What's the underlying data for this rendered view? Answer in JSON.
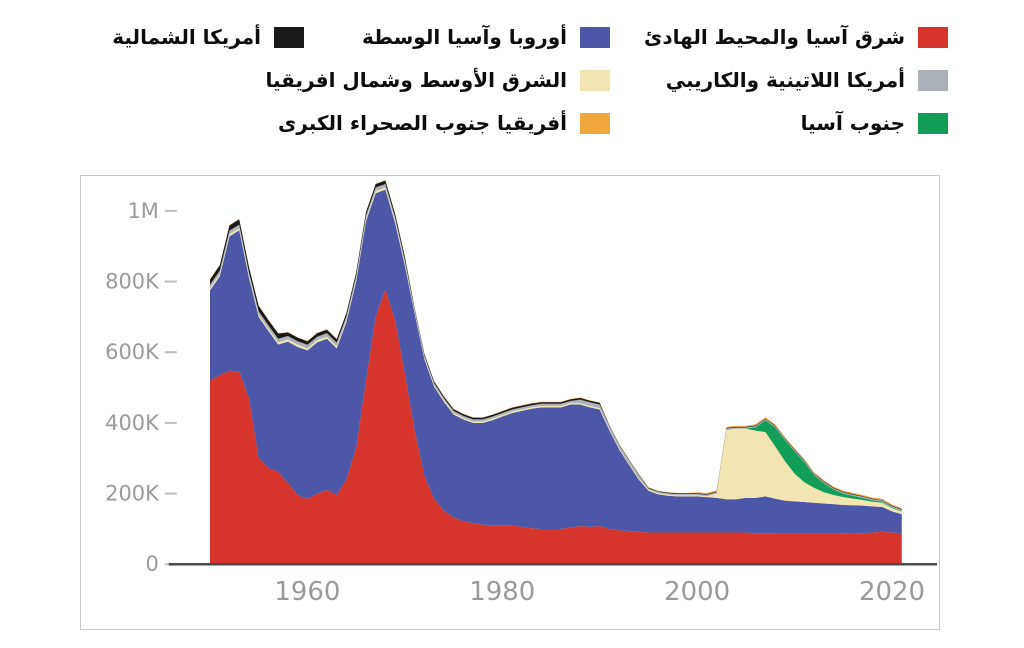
{
  "legend": {
    "items": [
      {
        "label": "شرق آسيا والمحيط الهادئ",
        "color": "#d6352b"
      },
      {
        "label": "أوروبا وآسيا الوسطة",
        "color": "#4c57a7"
      },
      {
        "label": "أمريكا الشمالية",
        "color": "#1a1a1a"
      },
      {
        "label": "أمريكا اللاتينية والكاريبي",
        "color": "#adb2b8"
      },
      {
        "label": "الشرق الأوسط وشمال افريقيا",
        "color": "#f3e5b1"
      },
      {
        "label": "جنوب آسيا",
        "color": "#129e57"
      },
      {
        "label": "أفريقيا جنوب الصحراء الكبرى",
        "color": "#f2a73d"
      }
    ]
  },
  "axes": {
    "y_tick_labels": [
      "0",
      "200K",
      "400K",
      "600K",
      "800K",
      "1M"
    ],
    "x_tick_labels": [
      "1960",
      "1980",
      "2000",
      "2020"
    ]
  },
  "chart_data": {
    "type": "area",
    "stacked": true,
    "title": "",
    "xlabel": "",
    "ylabel": "",
    "grid": false,
    "legend_position": "top",
    "value_scale": "thousands",
    "xlim": [
      1947,
      2024
    ],
    "ymax": 1000,
    "x_ticks": [
      1960,
      1980,
      2000,
      2020
    ],
    "y_ticks": [
      {
        "value": 0,
        "label": "0"
      },
      {
        "value": 200,
        "label": "200K"
      },
      {
        "value": 400,
        "label": "400K"
      },
      {
        "value": 600,
        "label": "600K"
      },
      {
        "value": 800,
        "label": "800K"
      },
      {
        "value": 1000,
        "label": "1M"
      }
    ],
    "x": [
      1950,
      1951,
      1952,
      1953,
      1954,
      1955,
      1956,
      1957,
      1958,
      1959,
      1960,
      1961,
      1962,
      1963,
      1964,
      1965,
      1966,
      1967,
      1968,
      1969,
      1970,
      1971,
      1972,
      1973,
      1974,
      1975,
      1976,
      1977,
      1978,
      1979,
      1980,
      1981,
      1982,
      1983,
      1984,
      1985,
      1986,
      1987,
      1988,
      1989,
      1990,
      1991,
      1992,
      1993,
      1994,
      1995,
      1996,
      1997,
      1998,
      1999,
      2000,
      2001,
      2002,
      2003,
      2004,
      2005,
      2006,
      2007,
      2008,
      2009,
      2010,
      2011,
      2012,
      2013,
      2014,
      2015,
      2016,
      2017,
      2018,
      2019,
      2020,
      2021
    ],
    "series": [
      {
        "id": "east-asia-pacific",
        "name": "شرق آسيا والمحيط الهادئ",
        "color": "#d6352b",
        "values": [
          520,
          535,
          548,
          545,
          470,
          300,
          272,
          262,
          230,
          195,
          185,
          200,
          210,
          196,
          240,
          330,
          520,
          700,
          778,
          690,
          540,
          380,
          250,
          185,
          152,
          132,
          122,
          116,
          112,
          110,
          110,
          110,
          106,
          102,
          100,
          100,
          100,
          104,
          108,
          106,
          108,
          100,
          96,
          94,
          92,
          90,
          90,
          90,
          90,
          90,
          90,
          90,
          90,
          90,
          90,
          90,
          88,
          88,
          88,
          86,
          86,
          86,
          86,
          86,
          86,
          86,
          87,
          88,
          90,
          92,
          90,
          88
        ]
      },
      {
        "id": "europe-central-asia",
        "name": "أوروبا وآسيا الوسطة",
        "color": "#4c57a7",
        "values": [
          255,
          280,
          380,
          400,
          340,
          400,
          388,
          360,
          400,
          420,
          420,
          428,
          428,
          415,
          445,
          470,
          450,
          350,
          282,
          275,
          305,
          330,
          330,
          318,
          308,
          292,
          288,
          284,
          288,
          298,
          308,
          318,
          328,
          338,
          344,
          344,
          344,
          348,
          344,
          338,
          330,
          278,
          228,
          188,
          148,
          118,
          108,
          104,
          102,
          102,
          102,
          100,
          98,
          94,
          94,
          98,
          100,
          104,
          98,
          94,
          92,
          90,
          88,
          86,
          84,
          82,
          80,
          78,
          74,
          70,
          60,
          54
        ]
      },
      {
        "id": "middle-east-north-africa",
        "name": "الشرق الأوسط وشمال افريقيا",
        "color": "#f3e5b1",
        "values": [
          6,
          6,
          6,
          6,
          6,
          6,
          6,
          6,
          6,
          6,
          6,
          6,
          6,
          6,
          6,
          6,
          6,
          6,
          6,
          6,
          6,
          4,
          4,
          4,
          4,
          4,
          4,
          4,
          4,
          4,
          4,
          4,
          4,
          4,
          4,
          4,
          4,
          4,
          4,
          4,
          4,
          3,
          3,
          3,
          3,
          3,
          3,
          3,
          3,
          3,
          3,
          3,
          12,
          196,
          200,
          196,
          190,
          182,
          148,
          112,
          78,
          56,
          42,
          32,
          26,
          22,
          19,
          16,
          13,
          12,
          9,
          7
        ]
      },
      {
        "id": "south-asia",
        "name": "جنوب آسيا",
        "color": "#129e57",
        "values": [
          0,
          0,
          0,
          0,
          0,
          0,
          0,
          0,
          0,
          0,
          0,
          0,
          0,
          0,
          0,
          0,
          0,
          0,
          0,
          0,
          0,
          0,
          0,
          0,
          0,
          0,
          0,
          0,
          0,
          0,
          0,
          0,
          0,
          0,
          0,
          0,
          0,
          0,
          0,
          0,
          0,
          0,
          0,
          0,
          0,
          0,
          0,
          0,
          0,
          0,
          0,
          0,
          0,
          0,
          0,
          0,
          10,
          34,
          54,
          60,
          64,
          58,
          36,
          26,
          16,
          10,
          8,
          6,
          4,
          3,
          2,
          2
        ]
      },
      {
        "id": "latin-america-caribbean",
        "name": "أمريكا اللاتينية والكاريبي",
        "color": "#adb2b8",
        "values": [
          10,
          10,
          10,
          10,
          10,
          10,
          10,
          10,
          10,
          10,
          10,
          10,
          10,
          10,
          10,
          10,
          10,
          10,
          10,
          10,
          10,
          6,
          6,
          6,
          6,
          6,
          6,
          6,
          6,
          6,
          6,
          6,
          6,
          6,
          6,
          6,
          6,
          6,
          10,
          10,
          10,
          10,
          10,
          10,
          10,
          4,
          4,
          4,
          4,
          4,
          4,
          4,
          4,
          4,
          3,
          3,
          3,
          3,
          3,
          3,
          3,
          3,
          3,
          3,
          3,
          3,
          3,
          3,
          3,
          3,
          3,
          3
        ]
      },
      {
        "id": "north-america",
        "name": "أمريكا الشمالية",
        "color": "#1a1a1a",
        "values": [
          15,
          15,
          15,
          15,
          15,
          15,
          15,
          15,
          10,
          10,
          10,
          10,
          10,
          10,
          10,
          10,
          10,
          10,
          10,
          10,
          10,
          5,
          5,
          5,
          5,
          5,
          5,
          5,
          5,
          5,
          5,
          5,
          5,
          5,
          5,
          5,
          5,
          5,
          5,
          5,
          5,
          2,
          2,
          2,
          2,
          2,
          2,
          2,
          2,
          2,
          2,
          2,
          2,
          2,
          2,
          2,
          2,
          2,
          2,
          2,
          2,
          2,
          2,
          2,
          2,
          2,
          2,
          2,
          2,
          2,
          2,
          2
        ]
      },
      {
        "id": "sub-saharan-africa",
        "name": "أفريقيا جنوب الصحراء الكبرى",
        "color": "#f2a73d",
        "values": [
          1,
          1,
          1,
          1,
          1,
          1,
          1,
          1,
          1,
          1,
          1,
          1,
          1,
          1,
          1,
          1,
          1,
          1,
          1,
          1,
          1,
          1,
          1,
          1,
          1,
          1,
          1,
          1,
          1,
          1,
          1,
          1,
          1,
          1,
          1,
          1,
          1,
          1,
          1,
          1,
          1,
          1,
          1,
          1,
          1,
          1,
          1,
          1,
          1,
          1,
          3,
          3,
          3,
          3,
          3,
          3,
          3,
          3,
          3,
          3,
          3,
          3,
          3,
          3,
          3,
          3,
          3,
          3,
          3,
          3,
          3,
          3
        ]
      }
    ]
  }
}
